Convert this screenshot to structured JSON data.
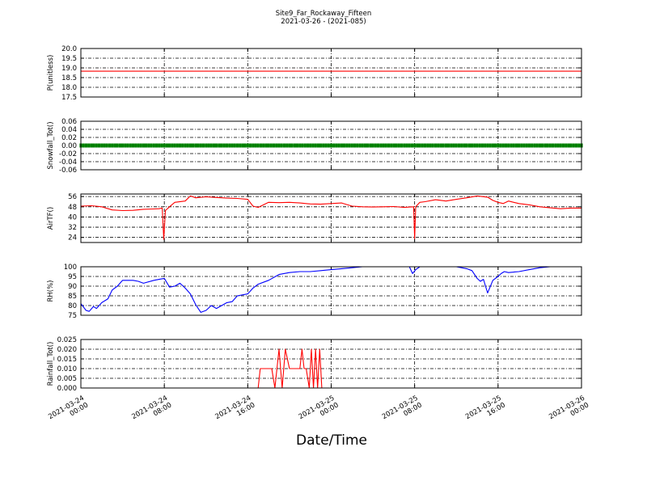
{
  "title": "Site9_Far_Rockaway_Fifteen",
  "subtitle": "2021-03-26 - (2021-085)",
  "xlabel": "Date/Time",
  "xticks": [
    {
      "d": "2021-03-24",
      "t": "00:00",
      "h": 0
    },
    {
      "d": "2021-03-24",
      "t": "08:00",
      "h": 8
    },
    {
      "d": "2021-03-24",
      "t": "16:00",
      "h": 16
    },
    {
      "d": "2021-03-25",
      "t": "00:00",
      "h": 24
    },
    {
      "d": "2021-03-25",
      "t": "08:00",
      "h": 32
    },
    {
      "d": "2021-03-25",
      "t": "16:00",
      "h": 40
    },
    {
      "d": "2021-03-26",
      "t": "00:00",
      "h": 48
    }
  ],
  "colors": {
    "P": "#ff0000",
    "Snow": "#008000",
    "AirT": "#ff0000",
    "RH": "#0000ff",
    "Rain": "#ff0000",
    "grid": "#000000"
  },
  "chart_data": [
    {
      "type": "line",
      "ylabel": "P(unitless)",
      "xlim": [
        0,
        48
      ],
      "ylim": [
        17.5,
        20.0
      ],
      "yticks": [
        "17.5",
        "18.0",
        "18.5",
        "19.0",
        "19.5",
        "20.0"
      ],
      "series": [
        {
          "x": [
            0,
            48
          ],
          "y": [
            18.83,
            18.83
          ]
        }
      ]
    },
    {
      "type": "line",
      "ylabel": "Snowfall_Tot()",
      "xlim": [
        0,
        48
      ],
      "ylim": [
        -0.06,
        0.06
      ],
      "yticks": [
        "-0.06",
        "-0.04",
        "-0.02",
        "0.00",
        "0.02",
        "0.04",
        "0.06"
      ],
      "series": [
        {
          "x": [
            0,
            48
          ],
          "y": [
            0.0,
            0.0
          ],
          "markers": true
        }
      ]
    },
    {
      "type": "line",
      "ylabel": "AirTF()",
      "xlim": [
        0,
        48
      ],
      "ylim": [
        20,
        58
      ],
      "yticks": [
        "24",
        "32",
        "40",
        "48",
        "56"
      ],
      "series": [
        {
          "x": [
            0,
            1,
            2,
            3,
            4,
            5,
            6,
            7,
            7.5,
            7.8,
            7.95,
            8.1,
            8.5,
            9,
            10,
            10.5,
            11,
            12,
            13,
            14,
            15,
            16,
            16.5,
            17,
            18,
            19,
            20,
            21,
            22,
            23,
            24,
            25,
            26,
            27,
            28,
            29,
            30,
            31,
            31.9,
            32.0,
            32.1,
            32.5,
            33,
            34,
            35,
            36,
            37,
            38,
            39,
            39.5,
            40,
            40.5,
            41,
            41.5,
            42,
            43,
            44,
            45,
            46,
            47,
            48
          ],
          "y": [
            48.5,
            48.8,
            48.0,
            45.5,
            45.0,
            45.2,
            46.0,
            46.3,
            46.5,
            47.0,
            22.5,
            45.0,
            48.0,
            51.5,
            52.5,
            56.5,
            55.0,
            55.8,
            55.3,
            54.8,
            54.5,
            53.8,
            48.5,
            47.5,
            51.5,
            51.2,
            51.5,
            51.0,
            50.2,
            50.0,
            50.5,
            51.0,
            48.5,
            48.0,
            47.8,
            48.0,
            48.2,
            47.5,
            48.0,
            23.0,
            48.0,
            51.5,
            52.0,
            53.5,
            52.5,
            53.8,
            55.0,
            56.5,
            55.5,
            53.0,
            51.5,
            50.5,
            52.5,
            51.5,
            50.5,
            49.5,
            48.0,
            47.2,
            46.5,
            47.0,
            47.0
          ]
        }
      ]
    },
    {
      "type": "line",
      "ylabel": "RH(%)",
      "xlim": [
        0,
        48
      ],
      "ylim": [
        75,
        100
      ],
      "yticks": [
        "75",
        "80",
        "85",
        "90",
        "95",
        "100"
      ],
      "series": [
        {
          "x": [
            0,
            0.5,
            0.8,
            1.2,
            1.5,
            2,
            2.3,
            2.6,
            3,
            3.5,
            4,
            5,
            5.5,
            6,
            7,
            7.5,
            8,
            8.5,
            9,
            9.5,
            10,
            10.5,
            11,
            11.5,
            12,
            12.5,
            13,
            13.5,
            14,
            14.5,
            15,
            16,
            16.5,
            17,
            17.5,
            18,
            19,
            20,
            21,
            22,
            23,
            24,
            25,
            26,
            27,
            28,
            29,
            30,
            31,
            31.5,
            31.8,
            32.1,
            32.5,
            33,
            34,
            35,
            36,
            37,
            37.5,
            38,
            38.3,
            38.6,
            39,
            39.5,
            40,
            40.3,
            40.6,
            41,
            42,
            43,
            44,
            45,
            48
          ],
          "y": [
            81,
            77.5,
            77,
            79.5,
            78.5,
            81.5,
            82.5,
            83.5,
            88,
            90,
            93,
            93,
            92.5,
            91.5,
            93,
            93.5,
            94,
            89.5,
            90,
            91.5,
            89,
            86,
            80.5,
            76.5,
            77.5,
            80,
            78.5,
            80,
            81.5,
            82,
            85,
            86,
            89,
            91,
            92,
            93,
            96,
            97,
            97.5,
            97.5,
            98,
            98.5,
            99,
            99.5,
            100,
            100,
            100,
            100,
            100,
            100,
            96.5,
            98.5,
            100,
            100,
            100,
            100,
            100,
            99,
            98,
            94,
            92.5,
            93.5,
            86.5,
            93,
            95,
            96.5,
            97.5,
            97,
            97.5,
            98.5,
            99.5,
            100,
            100
          ]
        }
      ]
    },
    {
      "type": "line",
      "ylabel": "Rainfall_Tot()",
      "xlim": [
        0,
        48
      ],
      "ylim": [
        0,
        0.025
      ],
      "yticks": [
        "0.000",
        "0.005",
        "0.010",
        "0.015",
        "0.020",
        "0.025"
      ],
      "series": [
        {
          "x": [
            0,
            17,
            17.2,
            18,
            18.3,
            18.6,
            19.0,
            19.3,
            19.6,
            20,
            21,
            21.2,
            21.4,
            21.6,
            21.9,
            22.1,
            22.3,
            22.5,
            22.7,
            22.9,
            23.1,
            23.3,
            48
          ],
          "y": [
            0,
            0,
            0.01,
            0.01,
            0.01,
            0,
            0.02,
            0,
            0.02,
            0.01,
            0.01,
            0.02,
            0.01,
            0.01,
            0,
            0.02,
            0,
            0.02,
            0,
            0.02,
            0,
            0,
            0
          ]
        }
      ]
    }
  ]
}
